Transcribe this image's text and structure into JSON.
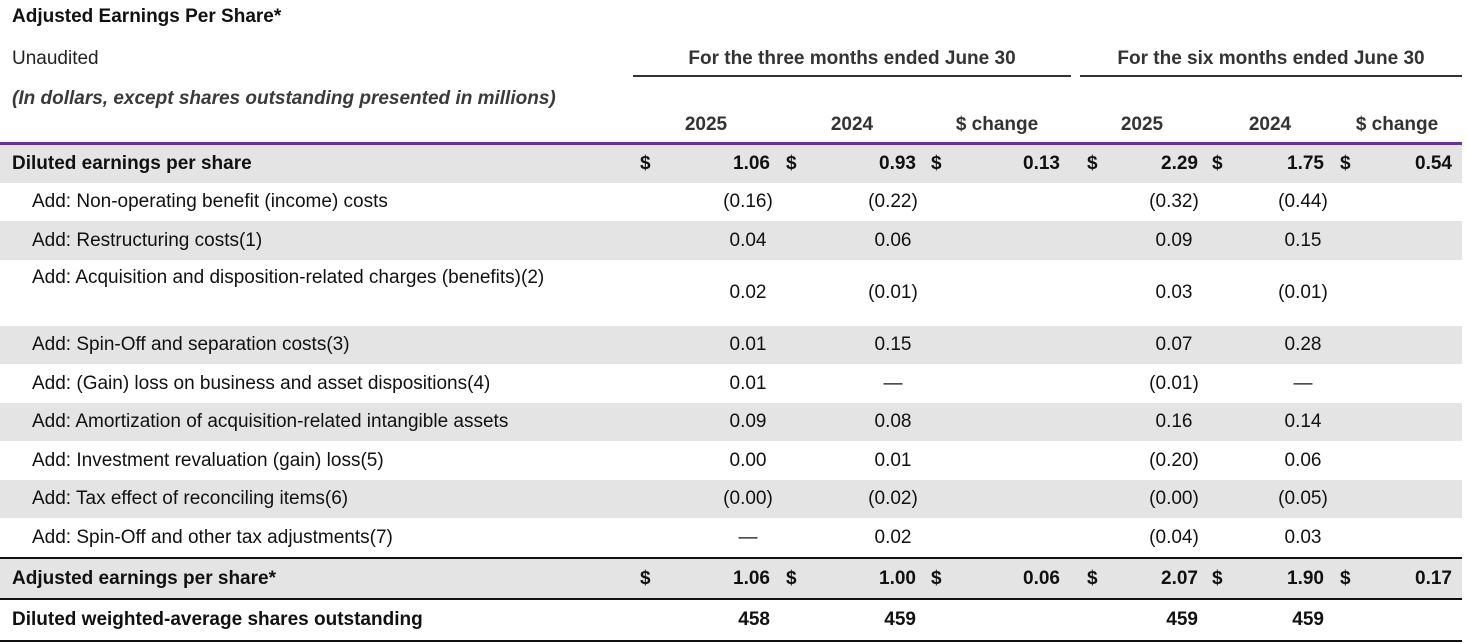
{
  "title": "Adjusted Earnings Per Share*",
  "header": {
    "unaudited": "Unaudited",
    "note": "(In dollars, except shares outstanding presented in millions)",
    "group_three_months": "For the three months ended June 30",
    "group_six_months": "For the six months ended June 30",
    "columns": [
      "2025",
      "2024",
      "$ change",
      "2025",
      "2024",
      "$ change"
    ]
  },
  "rows": [
    {
      "label": "Diluted earnings per share",
      "values": [
        "1.06",
        "0.93",
        "0.13",
        "2.29",
        "1.75",
        "0.54"
      ],
      "dollar": "$"
    },
    {
      "label": "Add: Non-operating benefit (income) costs",
      "values": [
        "(0.16)",
        "(0.22)",
        "",
        "(0.32)",
        "(0.44)",
        ""
      ]
    },
    {
      "label": "Add: Restructuring costs(1)",
      "values": [
        "0.04",
        "0.06",
        "",
        "0.09",
        "0.15",
        ""
      ]
    },
    {
      "label": "Add: Acquisition and disposition-related charges (benefits)(2)",
      "values": [
        "0.02",
        "(0.01)",
        "",
        "0.03",
        "(0.01)",
        ""
      ]
    },
    {
      "label": "Add: Spin-Off and separation costs(3)",
      "values": [
        "0.01",
        "0.15",
        "",
        "0.07",
        "0.28",
        ""
      ]
    },
    {
      "label": "Add: (Gain) loss on business and asset dispositions(4)",
      "values": [
        "0.01",
        "—",
        "",
        "(0.01)",
        "—",
        ""
      ]
    },
    {
      "label": "Add: Amortization of acquisition-related intangible assets",
      "values": [
        "0.09",
        "0.08",
        "",
        "0.16",
        "0.14",
        ""
      ]
    },
    {
      "label": "Add: Investment revaluation (gain) loss(5)",
      "values": [
        "0.00",
        "0.01",
        "",
        "(0.20)",
        "0.06",
        ""
      ]
    },
    {
      "label": "Add: Tax effect of reconciling items(6)",
      "values": [
        "(0.00)",
        "(0.02)",
        "",
        "(0.00)",
        "(0.05)",
        ""
      ]
    },
    {
      "label": "Add: Spin-Off and other tax adjustments(7)",
      "values": [
        "—",
        "0.02",
        "",
        "(0.04)",
        "0.03",
        ""
      ]
    },
    {
      "label": "Adjusted earnings per share*",
      "values": [
        "1.06",
        "1.00",
        "0.06",
        "2.07",
        "1.90",
        "0.17"
      ],
      "dollar": "$"
    },
    {
      "label": "Diluted weighted-average shares outstanding",
      "values": [
        "458",
        "459",
        "",
        "459",
        "459",
        ""
      ]
    }
  ],
  "colors": {
    "accent_rule": "#6b2fa0",
    "row_shade": "#e4e4e4"
  }
}
